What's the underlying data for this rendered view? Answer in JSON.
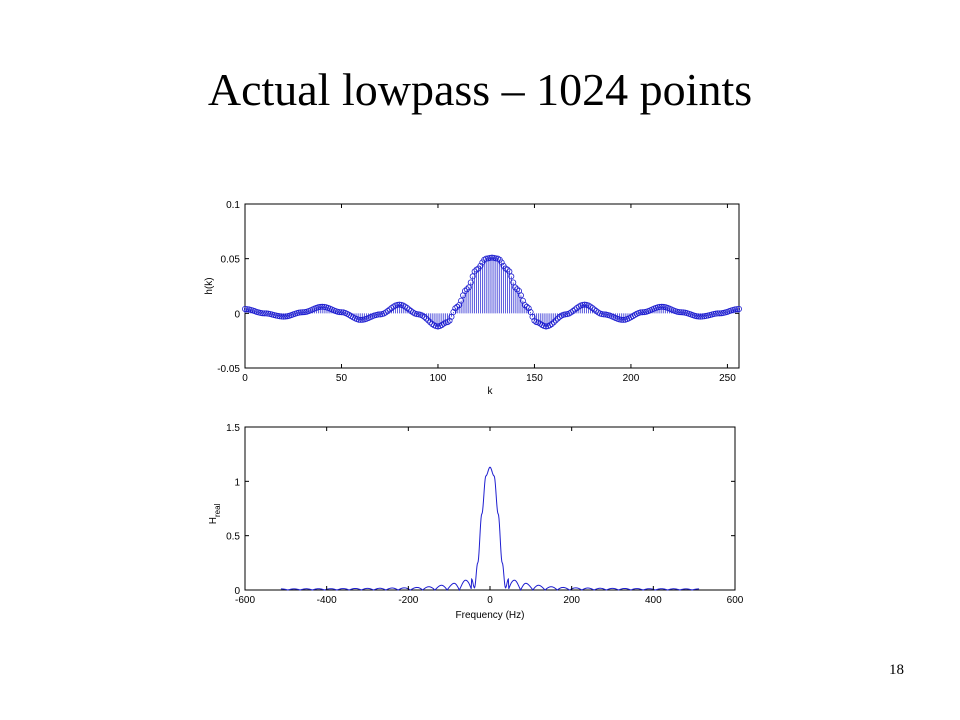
{
  "slide": {
    "title": "Actual lowpass – 1024 points",
    "page_number": "18"
  },
  "chart_data": [
    {
      "type": "stem",
      "xlabel": "k",
      "ylabel": "h(k)",
      "xlim": [
        0,
        256
      ],
      "ylim": [
        -0.05,
        0.1
      ],
      "x_ticks": [
        "0",
        "50",
        "100",
        "150",
        "200",
        "250"
      ],
      "y_ticks": [
        "-0.05",
        "0",
        "0.05",
        "0.1"
      ],
      "grid": false,
      "series_color": "#1f1fd0",
      "description_points": {
        "k": [
          0,
          10,
          20,
          30,
          40,
          50,
          60,
          70,
          80,
          90,
          100,
          105,
          110,
          115,
          120,
          125,
          128,
          131,
          136,
          141,
          146,
          151,
          156,
          166,
          176,
          186,
          196,
          206,
          216,
          226,
          236,
          246,
          256
        ],
        "h": [
          0.004,
          0.0,
          -0.003,
          0.001,
          0.006,
          0.001,
          -0.006,
          -0.001,
          0.008,
          -0.001,
          -0.012,
          -0.008,
          0.006,
          0.022,
          0.04,
          0.05,
          0.051,
          0.05,
          0.04,
          0.022,
          0.006,
          -0.008,
          -0.012,
          -0.001,
          0.008,
          -0.001,
          -0.006,
          0.001,
          0.006,
          0.001,
          -0.003,
          0.0,
          0.004
        ]
      }
    },
    {
      "type": "line",
      "xlabel": "Frequency (Hz)",
      "ylabel": "H",
      "ylabel_subscript": "real",
      "xlim": [
        -600,
        600
      ],
      "ylim": [
        0,
        1.5
      ],
      "x_ticks": [
        "-600",
        "-400",
        "-200",
        "0",
        "200",
        "400",
        "600"
      ],
      "y_ticks": [
        "0",
        "0.5",
        "1",
        "1.5"
      ],
      "grid": false,
      "series_color": "#1f1fd0",
      "x": [
        -512,
        -400,
        -300,
        -200,
        -150,
        -100,
        -80,
        -60,
        -45,
        -38,
        -30,
        -20,
        -10,
        0,
        10,
        20,
        30,
        38,
        45,
        60,
        80,
        100,
        150,
        200,
        300,
        400,
        512
      ],
      "y": [
        0.01,
        0.012,
        0.015,
        0.02,
        0.03,
        0.05,
        0.07,
        0.09,
        0.1,
        0.02,
        0.25,
        0.7,
        1.05,
        1.13,
        1.05,
        0.7,
        0.25,
        0.02,
        0.1,
        0.09,
        0.07,
        0.05,
        0.03,
        0.02,
        0.015,
        0.012,
        0.01
      ]
    }
  ]
}
